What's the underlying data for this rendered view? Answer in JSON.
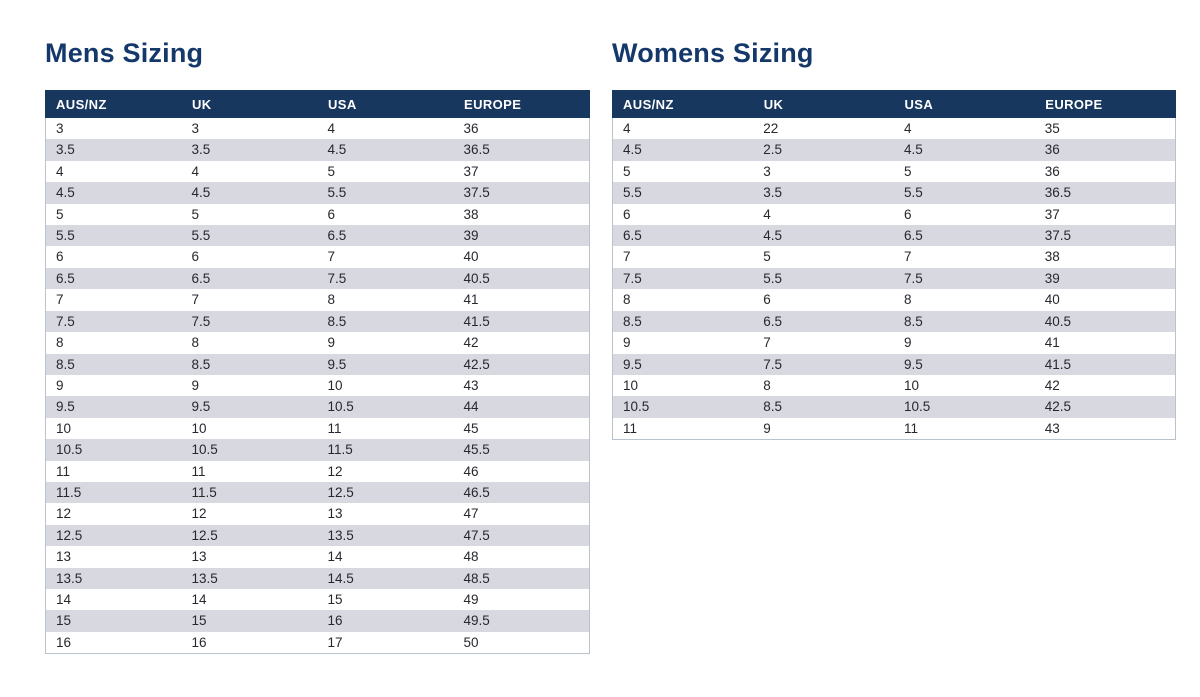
{
  "colors": {
    "title_text": "#14386a",
    "header_bg": "#17375f",
    "header_text": "#ffffff",
    "row_bg": "#ffffff",
    "row_alt_bg": "#d8d9e0",
    "cell_text": "#26282e",
    "table_border": "#b9c3cd"
  },
  "tables": [
    {
      "title": "Mens Sizing",
      "columns": [
        "AUS/NZ",
        "UK",
        "USA",
        "EUROPE"
      ],
      "rows": [
        [
          "3",
          "3",
          "4",
          "36"
        ],
        [
          "3.5",
          "3.5",
          "4.5",
          "36.5"
        ],
        [
          "4",
          "4",
          "5",
          "37"
        ],
        [
          "4.5",
          "4.5",
          "5.5",
          "37.5"
        ],
        [
          "5",
          "5",
          "6",
          "38"
        ],
        [
          "5.5",
          "5.5",
          "6.5",
          "39"
        ],
        [
          "6",
          "6",
          "7",
          "40"
        ],
        [
          "6.5",
          "6.5",
          "7.5",
          "40.5"
        ],
        [
          "7",
          "7",
          "8",
          "41"
        ],
        [
          "7.5",
          "7.5",
          "8.5",
          "41.5"
        ],
        [
          "8",
          "8",
          "9",
          "42"
        ],
        [
          "8.5",
          "8.5",
          "9.5",
          "42.5"
        ],
        [
          "9",
          "9",
          "10",
          "43"
        ],
        [
          "9.5",
          "9.5",
          "10.5",
          "44"
        ],
        [
          "10",
          "10",
          "11",
          "45"
        ],
        [
          "10.5",
          "10.5",
          "11.5",
          "45.5"
        ],
        [
          "11",
          "11",
          "12",
          "46"
        ],
        [
          "11.5",
          "11.5",
          "12.5",
          "46.5"
        ],
        [
          "12",
          "12",
          "13",
          "47"
        ],
        [
          "12.5",
          "12.5",
          "13.5",
          "47.5"
        ],
        [
          "13",
          "13",
          "14",
          "48"
        ],
        [
          "13.5",
          "13.5",
          "14.5",
          "48.5"
        ],
        [
          "14",
          "14",
          "15",
          "49"
        ],
        [
          "15",
          "15",
          "16",
          "49.5"
        ],
        [
          "16",
          "16",
          "17",
          "50"
        ]
      ]
    },
    {
      "title": "Womens Sizing",
      "columns": [
        "AUS/NZ",
        "UK",
        "USA",
        "EUROPE"
      ],
      "rows": [
        [
          "4",
          "22",
          "4",
          "35"
        ],
        [
          "4.5",
          "2.5",
          "4.5",
          "36"
        ],
        [
          "5",
          "3",
          "5",
          "36"
        ],
        [
          "5.5",
          "3.5",
          "5.5",
          "36.5"
        ],
        [
          "6",
          "4",
          "6",
          "37"
        ],
        [
          "6.5",
          "4.5",
          "6.5",
          "37.5"
        ],
        [
          "7",
          "5",
          "7",
          "38"
        ],
        [
          "7.5",
          "5.5",
          "7.5",
          "39"
        ],
        [
          "8",
          "6",
          "8",
          "40"
        ],
        [
          "8.5",
          "6.5",
          "8.5",
          "40.5"
        ],
        [
          "9",
          "7",
          "9",
          "41"
        ],
        [
          "9.5",
          "7.5",
          "9.5",
          "41.5"
        ],
        [
          "10",
          "8",
          "10",
          "42"
        ],
        [
          "10.5",
          "8.5",
          "10.5",
          "42.5"
        ],
        [
          "11",
          "9",
          "11",
          "43"
        ]
      ]
    }
  ]
}
